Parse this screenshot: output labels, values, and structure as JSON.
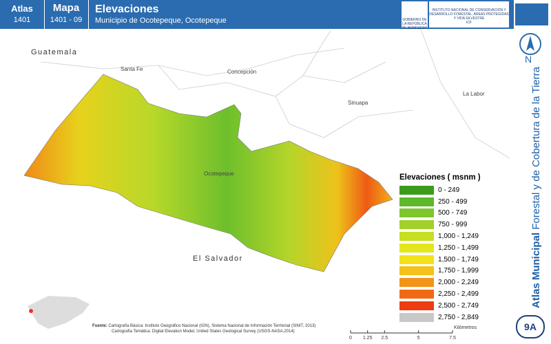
{
  "header": {
    "atlas_label": "Atlas",
    "atlas_number": "1401",
    "map_label": "Mapa",
    "map_number": "1401 - 09",
    "title": "Elevaciones",
    "subtitle": "Municipio de Ocotepeque, Ocotepeque",
    "logos": [
      "GOBIERNO DE LA REPÚBLICA DE HONDURAS",
      "INSTITUTO NACIONAL DE CONSERVACIÓN Y DESARROLLO FORESTAL, ÁREAS PROTEGIDAS Y VIDA SILVESTRE",
      "ICF"
    ]
  },
  "side": {
    "north": "N",
    "series_bold": "Atlas Municipal",
    "series_rest": "Forestal y de Cobertura de la Tierra",
    "sheet": "9A"
  },
  "map": {
    "labels": [
      "Guatemala",
      "Santa Fe",
      "Concepción",
      "La Labor",
      "Sinuapa",
      "Ocotepeque",
      "El Salvador"
    ]
  },
  "legend": {
    "title": "Elevaciones ( msnm )",
    "items": [
      {
        "label": "0 - 249",
        "color": "#3d9b1c"
      },
      {
        "label": "250 - 499",
        "color": "#5db82a"
      },
      {
        "label": "500 - 749",
        "color": "#7ec62e"
      },
      {
        "label": "750 - 999",
        "color": "#a1d12a"
      },
      {
        "label": "1,000 - 1,249",
        "color": "#c6df1e"
      },
      {
        "label": "1,250 - 1,499",
        "color": "#e3e61a"
      },
      {
        "label": "1,500 - 1,749",
        "color": "#f3e11a"
      },
      {
        "label": "1,750 - 1,999",
        "color": "#f5c11a"
      },
      {
        "label": "2,000 - 2,249",
        "color": "#f29418"
      },
      {
        "label": "2,250 - 2,499",
        "color": "#f06a14"
      },
      {
        "label": "2,500 - 2,749",
        "color": "#ee3b12"
      },
      {
        "label": "2,750 - 2,849",
        "color": "#c8c8c8"
      }
    ]
  },
  "scale": {
    "ticks": [
      0,
      1.25,
      2.5,
      5,
      7.5
    ],
    "unit": "Kilómetros"
  },
  "footer": {
    "source_label": "Fuente:",
    "lines": [
      "Cartografía Básica: Instituto Geográfico Nacional (IGN), Sistema Nacional de Información Territorial (SINIT, 2013)",
      "Cartografía Temática: Digital Elevation Model, United States Geological Survey (USGS-NASA,2014)"
    ]
  }
}
